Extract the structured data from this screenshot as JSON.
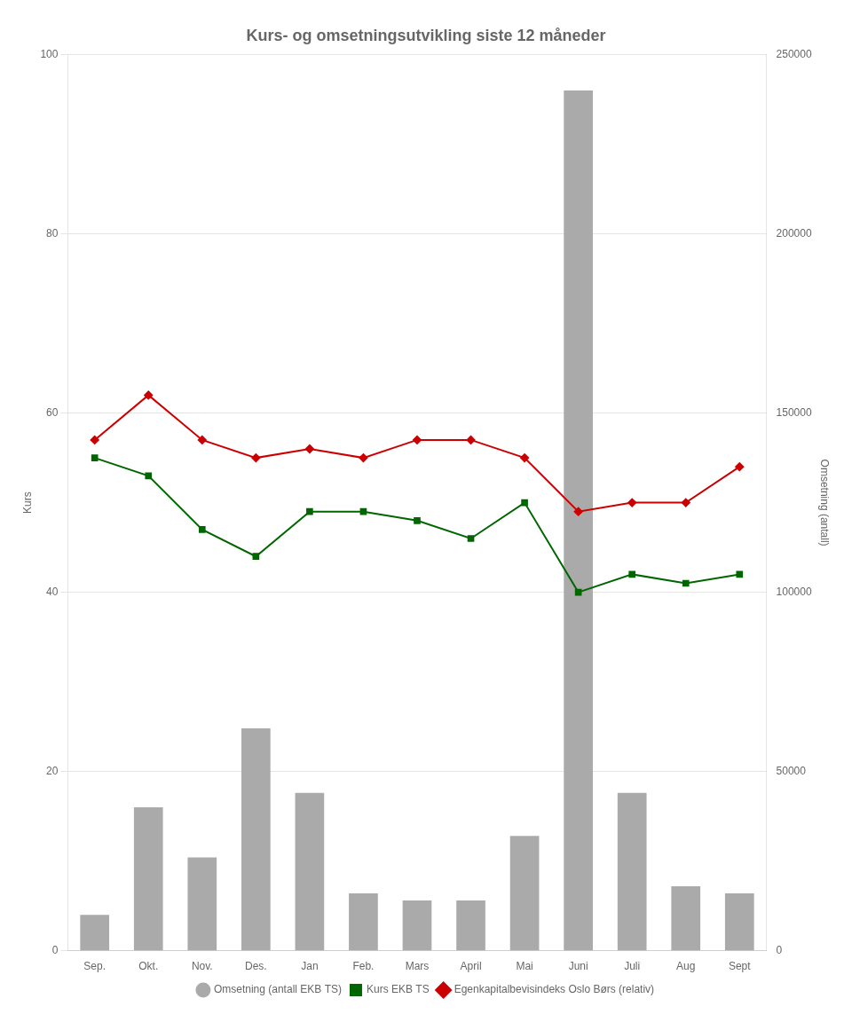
{
  "chart_data": {
    "type": "bar",
    "title": "Kurs- og omsetningsutvikling siste 12 måneder",
    "categories": [
      "Sep.",
      "Okt.",
      "Nov.",
      "Des.",
      "Jan",
      "Feb.",
      "Mars",
      "April",
      "Mai",
      "Juni",
      "Juli",
      "Aug",
      "Sept"
    ],
    "ylabel": "Kurs",
    "y2label": "Omsetning (antall)",
    "ylim": [
      0,
      100
    ],
    "yticks": [
      0,
      20,
      40,
      60,
      80,
      100
    ],
    "y2lim": [
      0,
      250000
    ],
    "y2ticks": [
      0,
      50000,
      100000,
      150000,
      200000,
      250000
    ],
    "grid": true,
    "legend": "bottom",
    "series": [
      {
        "name": "Omsetning (antall EKB TS)",
        "type": "bar",
        "color": "#aaaaaa",
        "axis": "y2",
        "values": [
          10000,
          40000,
          26000,
          62000,
          44000,
          16000,
          14000,
          14000,
          32000,
          240000,
          44000,
          18000,
          16000
        ]
      },
      {
        "name": "Kurs EKB TS",
        "type": "line",
        "color": "#006600",
        "marker": "square",
        "values": [
          55,
          53,
          47,
          44,
          49,
          49,
          48,
          46,
          50,
          40,
          42,
          41,
          42
        ]
      },
      {
        "name": "Egenkapitalbevisindeks Oslo Børs (relativ)",
        "type": "line",
        "color": "#cc0000",
        "marker": "diamond",
        "values": [
          57,
          62,
          57,
          55,
          56,
          55,
          57,
          57,
          55,
          49,
          50,
          50,
          54
        ]
      }
    ]
  }
}
